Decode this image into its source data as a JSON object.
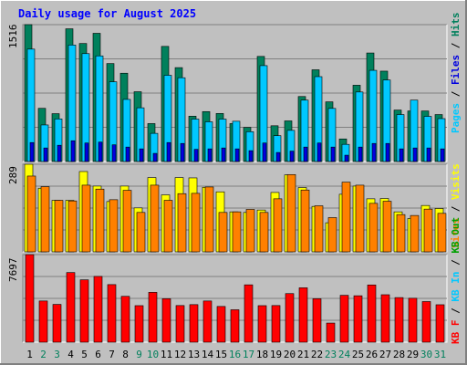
{
  "chart_data": [
    {
      "type": "bar",
      "title": "Daily usage for August 2025",
      "ylabel_max": "1516",
      "categories": [
        "1",
        "2",
        "3",
        "4",
        "5",
        "6",
        "7",
        "8",
        "9",
        "10",
        "11",
        "12",
        "13",
        "14",
        "15",
        "16",
        "17",
        "18",
        "19",
        "20",
        "21",
        "22",
        "23",
        "24",
        "25",
        "26",
        "27",
        "28",
        "29",
        "30",
        "31"
      ],
      "weekend_days": [
        2,
        3,
        9,
        10,
        16,
        17,
        23,
        24,
        30,
        31
      ],
      "legend": [
        "Pages",
        "Files",
        "Hits"
      ],
      "series": [
        {
          "name": "Hits",
          "color": "#00805c",
          "values": [
            1516,
            589,
            530,
            1470,
            1307,
            1420,
            1085,
            978,
            773,
            420,
            1275,
            1040,
            502,
            553,
            532,
            420,
            378,
            1164,
            396,
            450,
            720,
            1016,
            661,
            250,
            845,
            1202,
            1001,
            570,
            560,
            560,
            520
          ]
        },
        {
          "name": "Files",
          "color": "#00c8ff",
          "values": [
            1245,
            405,
            472,
            1290,
            1195,
            1170,
            883,
            688,
            595,
            312,
            955,
            928,
            470,
            440,
            470,
            446,
            330,
            1062,
            286,
            345,
            680,
            940,
            588,
            190,
            770,
            1010,
            903,
            520,
            680,
            500,
            475
          ]
        },
        {
          "name": "Pages",
          "color": "#0000e0",
          "values": [
            210,
            150,
            180,
            230,
            205,
            215,
            185,
            160,
            140,
            90,
            210,
            200,
            135,
            140,
            150,
            140,
            120,
            205,
            100,
            115,
            160,
            205,
            160,
            70,
            160,
            200,
            200,
            140,
            150,
            150,
            140
          ]
        }
      ]
    },
    {
      "type": "bar",
      "ylabel_max": "289",
      "legend": [
        "Sites",
        "Visits"
      ],
      "series": [
        {
          "name": "Visits",
          "color": "#ffff00",
          "values": [
            289,
            210,
            170,
            170,
            265,
            217,
            166,
            217,
            145,
            245,
            188,
            245,
            244,
            213,
            198,
            132,
            130,
            138,
            196,
            254,
            212,
            150,
            96,
            190,
            217,
            175,
            176,
            132,
            110,
            153,
            143
          ]
        },
        {
          "name": "Sites",
          "color": "#ff8000",
          "values": [
            250,
            215,
            170,
            168,
            220,
            207,
            172,
            203,
            130,
            220,
            170,
            192,
            193,
            214,
            130,
            132,
            140,
            130,
            175,
            255,
            204,
            152,
            113,
            230,
            220,
            160,
            167,
            123,
            120,
            141,
            127
          ]
        }
      ]
    },
    {
      "type": "bar",
      "ylabel_max": "7697",
      "legend": [
        "KB F",
        "KB In",
        "KB Out"
      ],
      "series": [
        {
          "name": "KB F",
          "color": "#ff0000",
          "values": [
            7697,
            3620,
            3320,
            6120,
            5480,
            5780,
            5060,
            4030,
            3210,
            4380,
            3820,
            3220,
            3300,
            3620,
            3140,
            2850,
            5040,
            3210,
            3220,
            4270,
            4780,
            3820,
            1680,
            4120,
            4080,
            5030,
            4170,
            3920,
            3860,
            3570,
            3290
          ]
        }
      ]
    }
  ]
}
